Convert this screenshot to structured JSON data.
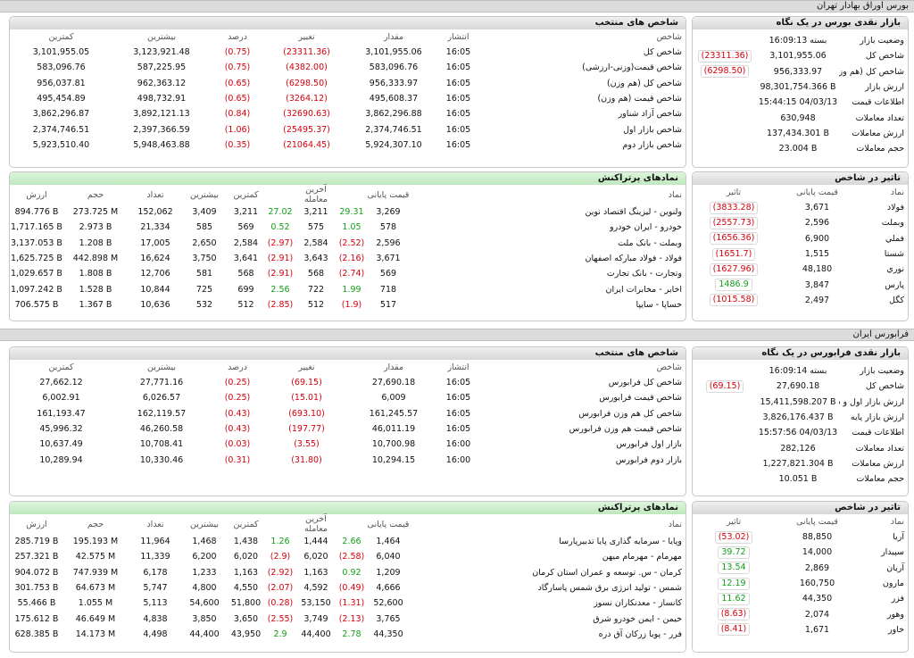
{
  "tse": {
    "title": "بورس اوراق بهادار تهران",
    "indices": {
      "title": "شاخص های منتخب",
      "headers": [
        "شاخص",
        "انتشار",
        "مقدار",
        "تغییر",
        "درصد",
        "بیشترین",
        "کمترین"
      ],
      "rows": [
        [
          "شاخص کل",
          "16:05",
          "3,101,955.06",
          "(23311.36)",
          "(0.75)",
          "3,123,921.48",
          "3,101,955.05"
        ],
        [
          "شاخص قیمت(وزنی-ارزشی)",
          "16:05",
          "583,096.76",
          "(4382.00)",
          "(0.75)",
          "587,225.95",
          "583,096.76"
        ],
        [
          "شاخص کل (هم وزن)",
          "16:05",
          "956,333.97",
          "(6298.50)",
          "(0.65)",
          "962,363.12",
          "956,037.81"
        ],
        [
          "شاخص قیمت (هم وزن)",
          "16:05",
          "495,608.37",
          "(3264.12)",
          "(0.65)",
          "498,732.91",
          "495,454.89"
        ],
        [
          "شاخص آزاد شناور",
          "16:05",
          "3,862,296.88",
          "(32690.63)",
          "(0.84)",
          "3,892,121.13",
          "3,862,296.87"
        ],
        [
          "شاخص بازار اول",
          "16:05",
          "2,374,746.51",
          "(25495.37)",
          "(1.06)",
          "2,397,366.59",
          "2,374,746.51"
        ],
        [
          "شاخص بازار دوم",
          "16:05",
          "5,924,307.10",
          "(21064.45)",
          "(0.35)",
          "5,948,463.88",
          "5,923,510.40"
        ]
      ]
    },
    "market": {
      "title": "بازار نقدی بورس در یک نگاه",
      "rows": [
        [
          "وضعیت بازار",
          "16:09:13 بسته",
          ""
        ],
        [
          "شاخص کل",
          "3,101,955.06",
          "(23311.36)"
        ],
        [
          "شاخص کل (هم وزن)",
          "956,333.97",
          "(6298.50)"
        ],
        [
          "ارزش بازار",
          "98,301,754.366 B",
          ""
        ],
        [
          "اطلاعات قیمت",
          "15:44:15 04/03/13",
          ""
        ],
        [
          "تعداد معاملات",
          "630,948",
          ""
        ],
        [
          "ارزش معاملات",
          "137,434.301 B",
          ""
        ],
        [
          "حجم معاملات",
          "23.004 B",
          ""
        ]
      ]
    },
    "symbols": {
      "title": "نمادهای پرتراکنش",
      "headers": [
        "نماد",
        "قیمت پایانی",
        "",
        "آخرین معامله",
        "",
        "کمترین",
        "بیشترین",
        "تعداد",
        "حجم",
        "ارزش"
      ],
      "rows": [
        [
          "ولنوین - لیزینگ اقتصاد نوین",
          "3,269",
          "29.31",
          "3,211",
          "27.02",
          "3,211",
          "3,409",
          "152,062",
          "273.725 M",
          "894.776 B"
        ],
        [
          "خودرو - ایران خودرو",
          "578",
          "1.05",
          "575",
          "0.52",
          "569",
          "585",
          "21,334",
          "2.973 B",
          "1,717.165 B"
        ],
        [
          "وبملت - بانک ملت",
          "2,596",
          "(2.52)",
          "2,584",
          "(2.97)",
          "2,584",
          "2,650",
          "17,005",
          "1.208 B",
          "3,137.053 B"
        ],
        [
          "فولاد - فولاد مبارکه اصفهان",
          "3,671",
          "(2.16)",
          "3,643",
          "(2.91)",
          "3,641",
          "3,750",
          "16,624",
          "442.898 M",
          "1,625.725 B"
        ],
        [
          "وتجارت - بانک تجارت",
          "569",
          "(2.74)",
          "568",
          "(2.91)",
          "568",
          "581",
          "12,706",
          "1.808 B",
          "1,029.657 B"
        ],
        [
          "اخابر - مخابرات ایران",
          "718",
          "1.99",
          "722",
          "2.56",
          "699",
          "725",
          "10,844",
          "1.528 B",
          "1,097.242 B"
        ],
        [
          "خساپا - سایپا",
          "517",
          "(1.9)",
          "512",
          "(2.85)",
          "512",
          "532",
          "10,636",
          "1.367 B",
          "706.575 B"
        ]
      ]
    },
    "impact": {
      "title": "تاثیر در شاخص",
      "headers": [
        "نماد",
        "قیمت پایانی",
        "تاثیر"
      ],
      "rows": [
        [
          "فولاد",
          "3,671",
          "(3833.28)"
        ],
        [
          "وبملت",
          "2,596",
          "(2557.73)"
        ],
        [
          "فملي",
          "6,900",
          "(1656.36)"
        ],
        [
          "شستا",
          "1,515",
          "(1651.7)"
        ],
        [
          "نوري",
          "48,180",
          "(1627.96)"
        ],
        [
          "پارس",
          "3,847",
          "1486.9"
        ],
        [
          "کگل",
          "2,497",
          "(1015.58)"
        ]
      ]
    }
  },
  "ifb": {
    "title": "فرابورس ایران",
    "indices": {
      "title": "شاخص های منتخب",
      "headers": [
        "شاخص",
        "انتشار",
        "مقدار",
        "تغییر",
        "درصد",
        "بیشترین",
        "کمترین"
      ],
      "rows": [
        [
          "شاخص کل فرابورس",
          "16:05",
          "27,690.18",
          "(69.15)",
          "(0.25)",
          "27,771.16",
          "27,662.12"
        ],
        [
          "شاخص قیمت فرابورس",
          "16:05",
          "6,009",
          "(15.01)",
          "(0.25)",
          "6,026.57",
          "6,002.91"
        ],
        [
          "شاخص کل هم وزن فرابورس",
          "16:05",
          "161,245.57",
          "(693.10)",
          "(0.43)",
          "162,119.57",
          "161,193.47"
        ],
        [
          "شاخص قیمت هم وزن فرابورس",
          "16:05",
          "46,011.19",
          "(197.77)",
          "(0.43)",
          "46,260.58",
          "45,996.32"
        ],
        [
          "بازار اول فرابورس",
          "16:00",
          "10,700.98",
          "(3.55)",
          "(0.03)",
          "10,708.41",
          "10,637.49"
        ],
        [
          "بازار دوم فرابورس",
          "16:00",
          "10,294.15",
          "(31.80)",
          "(0.31)",
          "10,330.46",
          "10,289.94"
        ]
      ]
    },
    "market": {
      "title": "بازار نقدی فرابورس در یک نگاه",
      "rows": [
        [
          "وضعیت بازار",
          "16:09:14 بسته",
          ""
        ],
        [
          "شاخص کل",
          "27,690.18",
          "(69.15)"
        ],
        [
          "ارزش بازار اول و دوم",
          "15,411,598.207 B",
          ""
        ],
        [
          "ارزش بازار پایه",
          "3,826,176.437 B",
          ""
        ],
        [
          "اطلاعات قیمت",
          "15:57:56 04/03/13",
          ""
        ],
        [
          "تعداد معاملات",
          "282,126",
          ""
        ],
        [
          "ارزش معاملات",
          "1,227,821.304 B",
          ""
        ],
        [
          "حجم معاملات",
          "10.051 B",
          ""
        ]
      ]
    },
    "symbols": {
      "title": "نمادهای پرتراکنش",
      "headers": [
        "نماد",
        "قیمت پایانی",
        "",
        "آخرین معامله",
        "",
        "کمترین",
        "بیشترین",
        "تعداد",
        "حجم",
        "ارزش"
      ],
      "rows": [
        [
          "وپایا - سرمایه گذاری پایا تدبیرپارسا",
          "1,464",
          "2.66",
          "1,444",
          "1.26",
          "1,438",
          "1,468",
          "11,964",
          "195.193 M",
          "285.719 B"
        ],
        [
          "مهرمام - مهرمام میهن",
          "6,040",
          "(2.58)",
          "6,020",
          "(2.9)",
          "6,020",
          "6,200",
          "11,339",
          "42.575 M",
          "257.321 B"
        ],
        [
          "کرمان - س. توسعه و عمران استان کرمان",
          "1,209",
          "0.92",
          "1,163",
          "(2.92)",
          "1,163",
          "1,233",
          "6,178",
          "747.939 M",
          "904.072 B"
        ],
        [
          "شمس - تولید انرژی برق شمس پاسارگاد",
          "4,666",
          "(0.49)",
          "4,592",
          "(2.07)",
          "4,550",
          "4,800",
          "5,747",
          "64.673 M",
          "301.753 B"
        ],
        [
          "کانساز - معدنکاران نسوز",
          "52,600",
          "(1.31)",
          "53,150",
          "(0.28)",
          "51,800",
          "54,600",
          "5,113",
          "1.055 M",
          "55.466 B"
        ],
        [
          "خیمن - ایمن خودرو شرق",
          "3,765",
          "(2.13)",
          "3,749",
          "(2.55)",
          "3,650",
          "3,850",
          "4,838",
          "46.649 M",
          "175.612 B"
        ],
        [
          "فرر - پویا زرکان آق دره",
          "44,350",
          "2.78",
          "44,400",
          "2.9",
          "43,950",
          "44,400",
          "4,498",
          "14.173 M",
          "628.385 B"
        ]
      ]
    },
    "impact": {
      "title": "تاثیر در شاخص",
      "headers": [
        "نماد",
        "قیمت پایانی",
        "تاثیر"
      ],
      "rows": [
        [
          "آریا",
          "88,850",
          "(53.02)"
        ],
        [
          "سپیدار",
          "14,000",
          "39.72"
        ],
        [
          "آریان",
          "2,869",
          "13.54"
        ],
        [
          "مارون",
          "160,750",
          "12.19"
        ],
        [
          "فزر",
          "44,350",
          "11.62"
        ],
        [
          "وهور",
          "2,074",
          "(8.63)"
        ],
        [
          "خاور",
          "1,671",
          "(8.41)"
        ]
      ]
    }
  }
}
